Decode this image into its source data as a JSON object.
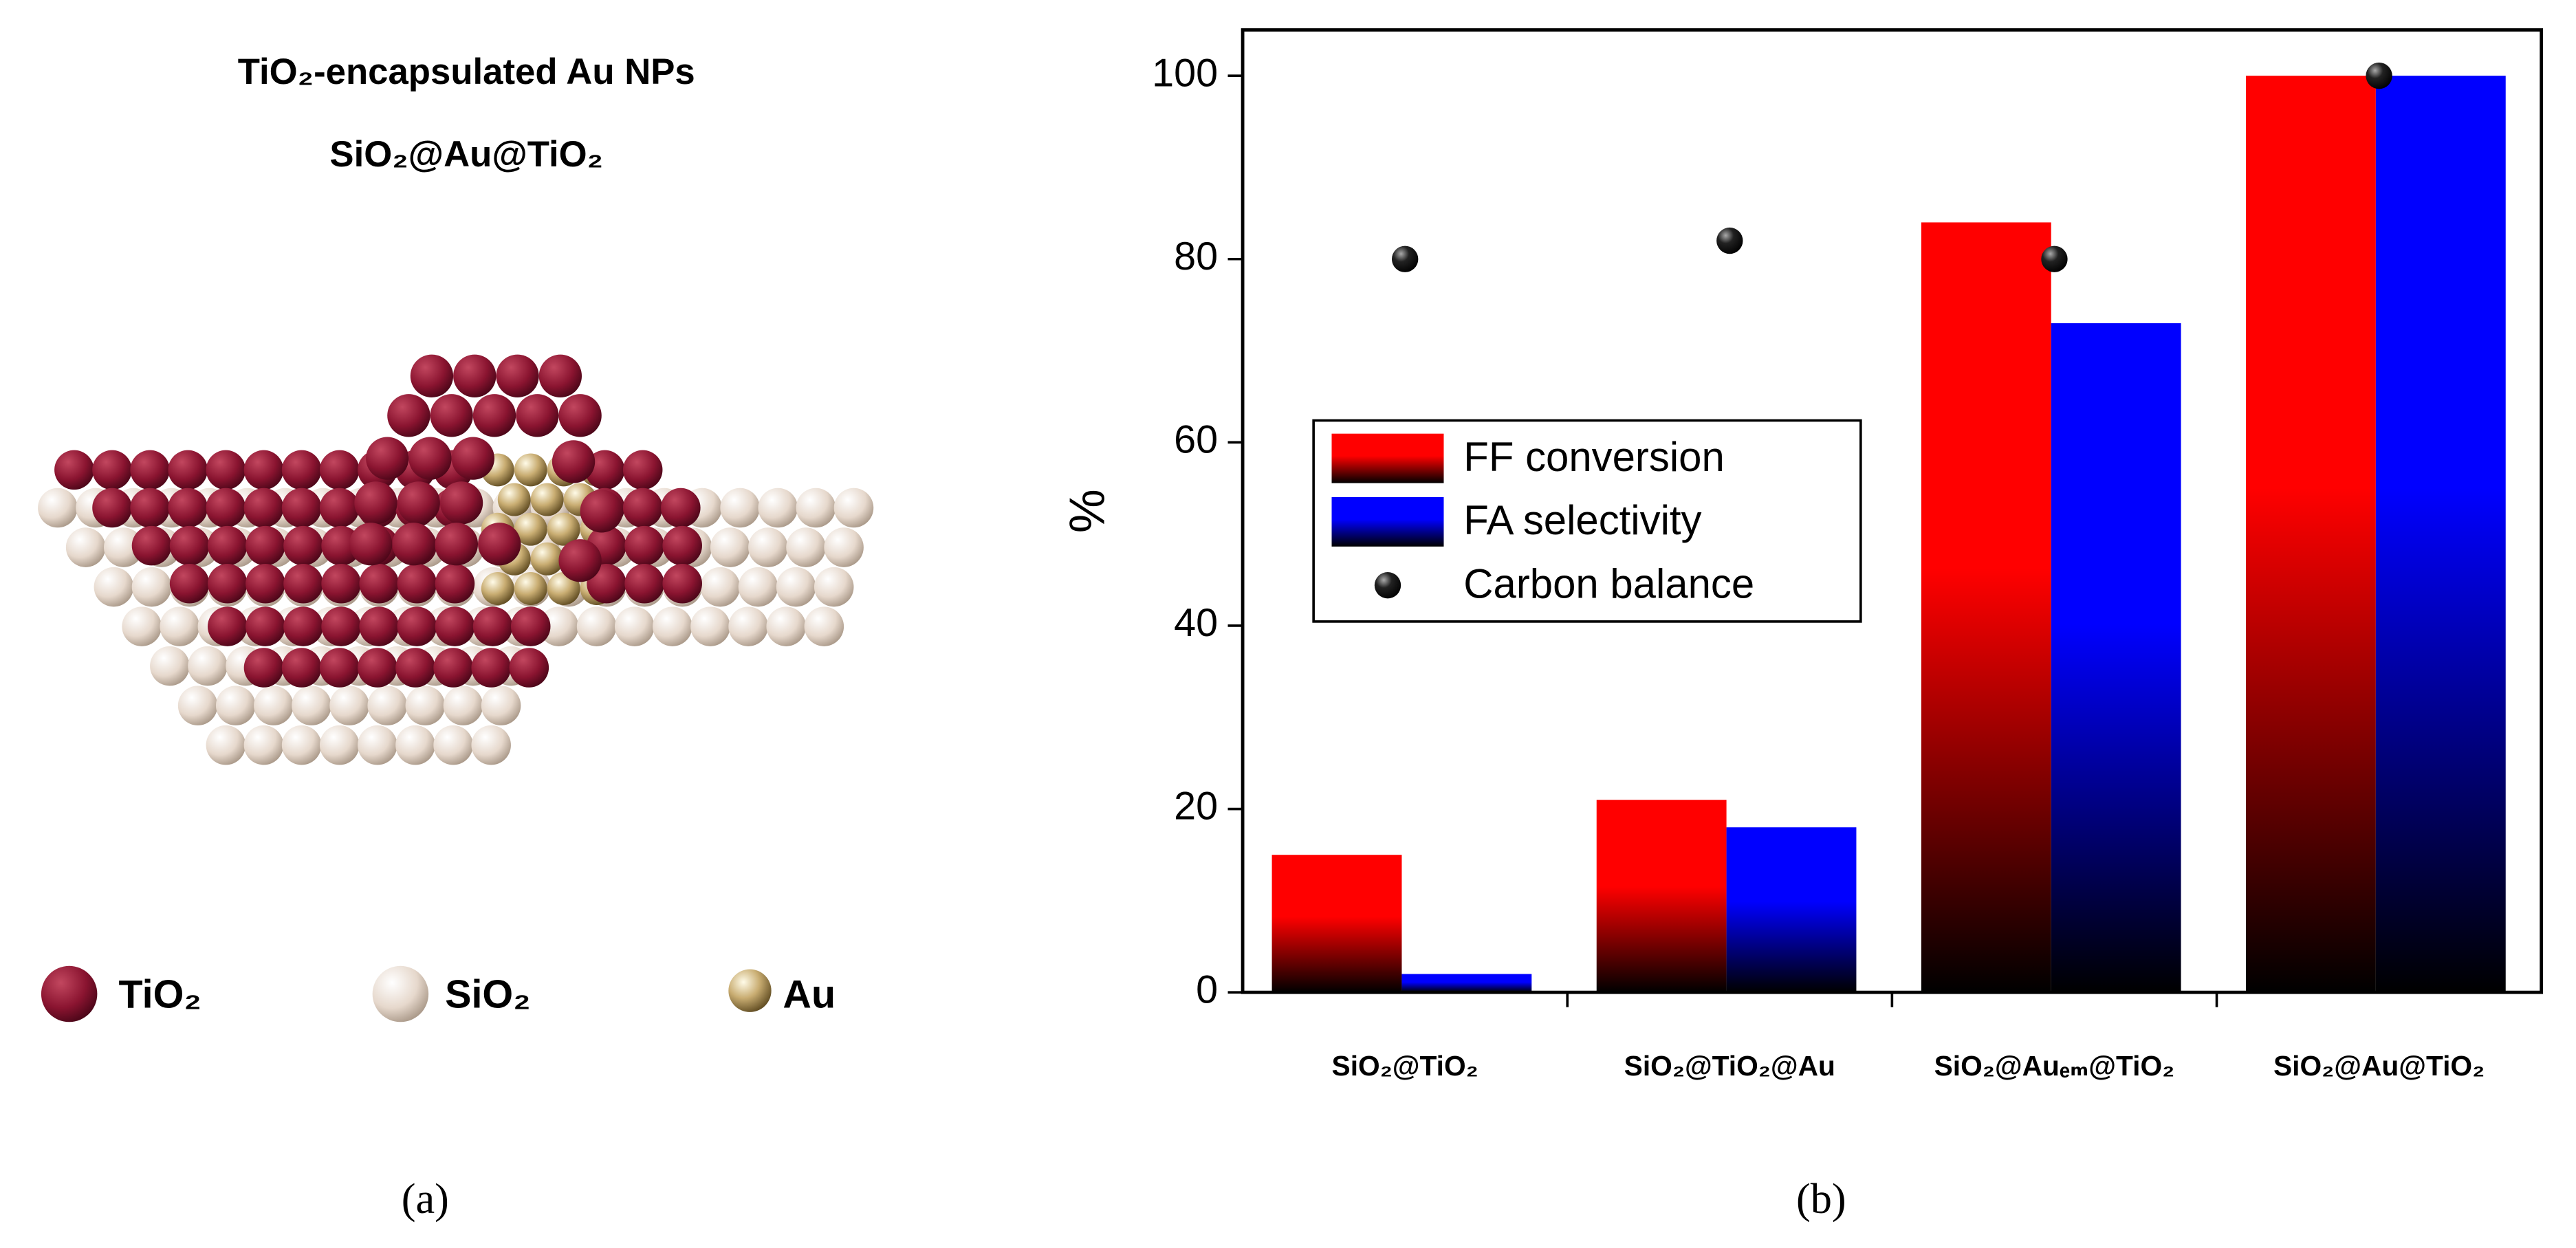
{
  "panel_a": {
    "title_lines": [
      "TiO₂-encapsulated Au NPs",
      "SiO₂@Au@TiO₂"
    ],
    "legend": [
      "TiO₂",
      "SiO₂",
      "Au"
    ],
    "label": "(a)"
  },
  "chart_data": {
    "type": "bar",
    "ylabel": "%",
    "label": "(b)",
    "categories": [
      "SiO₂@TiO₂",
      "SiO₂@TiO₂@Au",
      "SiO₂@Auₑₘ@TiO₂",
      "SiO₂@Au@TiO₂"
    ],
    "series": [
      {
        "name": "FF conversion",
        "color": "#ff0000",
        "values": [
          15,
          21,
          84,
          100
        ]
      },
      {
        "name": "FA selectivity",
        "color": "#0000ff",
        "values": [
          2,
          18,
          73,
          100
        ]
      },
      {
        "name": "Carbon balance",
        "type": "scatter",
        "color": "#000000",
        "values": [
          80,
          82,
          80,
          100
        ]
      }
    ],
    "ylim": [
      0,
      105
    ],
    "yticks": [
      0,
      20,
      40,
      60,
      80,
      100
    ]
  }
}
